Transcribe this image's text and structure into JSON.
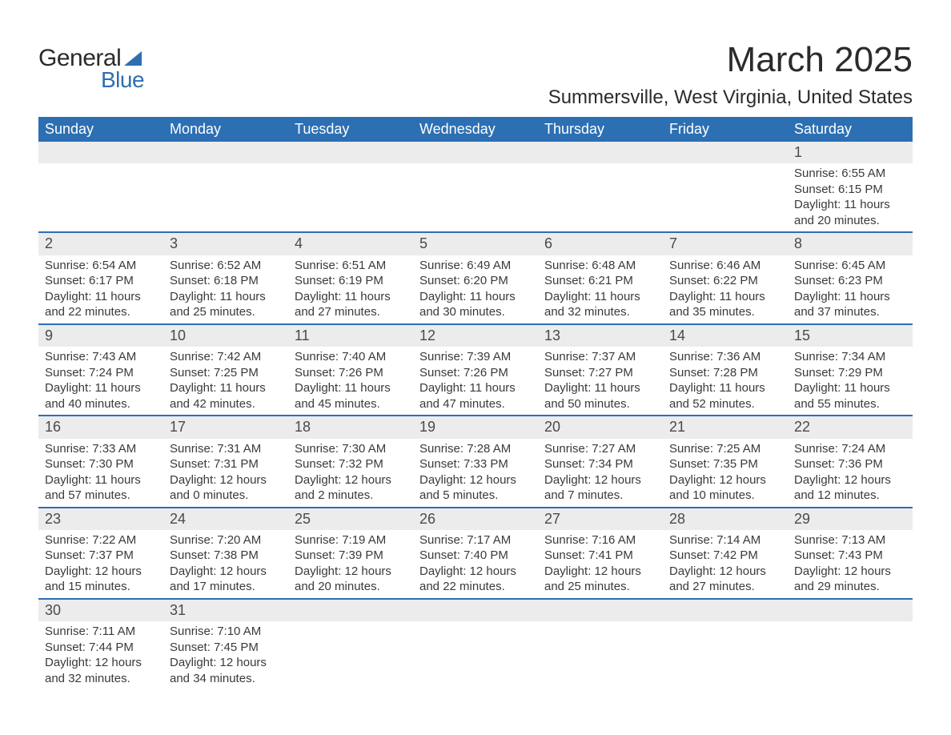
{
  "logo": {
    "text1": "General",
    "text2": "Blue",
    "sail_color": "#2d6fb3"
  },
  "title": "March 2025",
  "location": "Summersville, West Virginia, United States",
  "weekday_labels": [
    "Sunday",
    "Monday",
    "Tuesday",
    "Wednesday",
    "Thursday",
    "Friday",
    "Saturday"
  ],
  "colors": {
    "header_bg": "#2d6fb3",
    "header_text": "#ffffff",
    "daynum_bg": "#ececec",
    "row_divider": "#2d6fb3",
    "body_text": "#3a3a3a",
    "page_bg": "#ffffff"
  },
  "typography": {
    "title_fontsize_pt": 33,
    "location_fontsize_pt": 18,
    "weekday_fontsize_pt": 13.5,
    "daynum_fontsize_pt": 13.5,
    "cell_fontsize_pt": 11
  },
  "weeks": [
    [
      null,
      null,
      null,
      null,
      null,
      null,
      {
        "n": "1",
        "sunrise": "6:55 AM",
        "sunset": "6:15 PM",
        "dl1": "11 hours",
        "dl2": "and 20 minutes."
      }
    ],
    [
      {
        "n": "2",
        "sunrise": "6:54 AM",
        "sunset": "6:17 PM",
        "dl1": "11 hours",
        "dl2": "and 22 minutes."
      },
      {
        "n": "3",
        "sunrise": "6:52 AM",
        "sunset": "6:18 PM",
        "dl1": "11 hours",
        "dl2": "and 25 minutes."
      },
      {
        "n": "4",
        "sunrise": "6:51 AM",
        "sunset": "6:19 PM",
        "dl1": "11 hours",
        "dl2": "and 27 minutes."
      },
      {
        "n": "5",
        "sunrise": "6:49 AM",
        "sunset": "6:20 PM",
        "dl1": "11 hours",
        "dl2": "and 30 minutes."
      },
      {
        "n": "6",
        "sunrise": "6:48 AM",
        "sunset": "6:21 PM",
        "dl1": "11 hours",
        "dl2": "and 32 minutes."
      },
      {
        "n": "7",
        "sunrise": "6:46 AM",
        "sunset": "6:22 PM",
        "dl1": "11 hours",
        "dl2": "and 35 minutes."
      },
      {
        "n": "8",
        "sunrise": "6:45 AM",
        "sunset": "6:23 PM",
        "dl1": "11 hours",
        "dl2": "and 37 minutes."
      }
    ],
    [
      {
        "n": "9",
        "sunrise": "7:43 AM",
        "sunset": "7:24 PM",
        "dl1": "11 hours",
        "dl2": "and 40 minutes."
      },
      {
        "n": "10",
        "sunrise": "7:42 AM",
        "sunset": "7:25 PM",
        "dl1": "11 hours",
        "dl2": "and 42 minutes."
      },
      {
        "n": "11",
        "sunrise": "7:40 AM",
        "sunset": "7:26 PM",
        "dl1": "11 hours",
        "dl2": "and 45 minutes."
      },
      {
        "n": "12",
        "sunrise": "7:39 AM",
        "sunset": "7:26 PM",
        "dl1": "11 hours",
        "dl2": "and 47 minutes."
      },
      {
        "n": "13",
        "sunrise": "7:37 AM",
        "sunset": "7:27 PM",
        "dl1": "11 hours",
        "dl2": "and 50 minutes."
      },
      {
        "n": "14",
        "sunrise": "7:36 AM",
        "sunset": "7:28 PM",
        "dl1": "11 hours",
        "dl2": "and 52 minutes."
      },
      {
        "n": "15",
        "sunrise": "7:34 AM",
        "sunset": "7:29 PM",
        "dl1": "11 hours",
        "dl2": "and 55 minutes."
      }
    ],
    [
      {
        "n": "16",
        "sunrise": "7:33 AM",
        "sunset": "7:30 PM",
        "dl1": "11 hours",
        "dl2": "and 57 minutes."
      },
      {
        "n": "17",
        "sunrise": "7:31 AM",
        "sunset": "7:31 PM",
        "dl1": "12 hours",
        "dl2": "and 0 minutes."
      },
      {
        "n": "18",
        "sunrise": "7:30 AM",
        "sunset": "7:32 PM",
        "dl1": "12 hours",
        "dl2": "and 2 minutes."
      },
      {
        "n": "19",
        "sunrise": "7:28 AM",
        "sunset": "7:33 PM",
        "dl1": "12 hours",
        "dl2": "and 5 minutes."
      },
      {
        "n": "20",
        "sunrise": "7:27 AM",
        "sunset": "7:34 PM",
        "dl1": "12 hours",
        "dl2": "and 7 minutes."
      },
      {
        "n": "21",
        "sunrise": "7:25 AM",
        "sunset": "7:35 PM",
        "dl1": "12 hours",
        "dl2": "and 10 minutes."
      },
      {
        "n": "22",
        "sunrise": "7:24 AM",
        "sunset": "7:36 PM",
        "dl1": "12 hours",
        "dl2": "and 12 minutes."
      }
    ],
    [
      {
        "n": "23",
        "sunrise": "7:22 AM",
        "sunset": "7:37 PM",
        "dl1": "12 hours",
        "dl2": "and 15 minutes."
      },
      {
        "n": "24",
        "sunrise": "7:20 AM",
        "sunset": "7:38 PM",
        "dl1": "12 hours",
        "dl2": "and 17 minutes."
      },
      {
        "n": "25",
        "sunrise": "7:19 AM",
        "sunset": "7:39 PM",
        "dl1": "12 hours",
        "dl2": "and 20 minutes."
      },
      {
        "n": "26",
        "sunrise": "7:17 AM",
        "sunset": "7:40 PM",
        "dl1": "12 hours",
        "dl2": "and 22 minutes."
      },
      {
        "n": "27",
        "sunrise": "7:16 AM",
        "sunset": "7:41 PM",
        "dl1": "12 hours",
        "dl2": "and 25 minutes."
      },
      {
        "n": "28",
        "sunrise": "7:14 AM",
        "sunset": "7:42 PM",
        "dl1": "12 hours",
        "dl2": "and 27 minutes."
      },
      {
        "n": "29",
        "sunrise": "7:13 AM",
        "sunset": "7:43 PM",
        "dl1": "12 hours",
        "dl2": "and 29 minutes."
      }
    ],
    [
      {
        "n": "30",
        "sunrise": "7:11 AM",
        "sunset": "7:44 PM",
        "dl1": "12 hours",
        "dl2": "and 32 minutes."
      },
      {
        "n": "31",
        "sunrise": "7:10 AM",
        "sunset": "7:45 PM",
        "dl1": "12 hours",
        "dl2": "and 34 minutes."
      },
      null,
      null,
      null,
      null,
      null
    ]
  ],
  "labels": {
    "sunrise_prefix": "Sunrise: ",
    "sunset_prefix": "Sunset: ",
    "daylight_prefix": "Daylight: "
  }
}
